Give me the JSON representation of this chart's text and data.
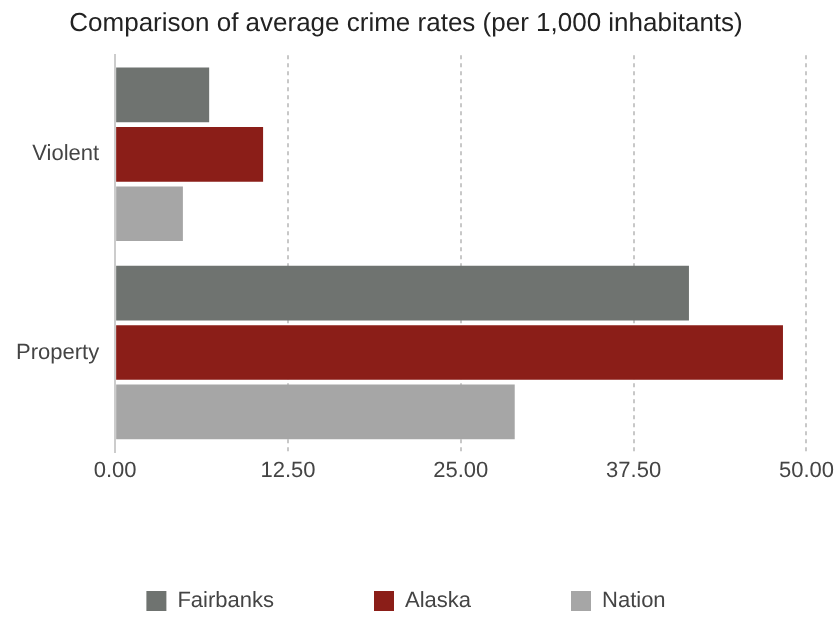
{
  "chart_data": {
    "type": "bar",
    "orientation": "horizontal",
    "title": "Comparison of average crime rates (per 1,000 inhabitants)",
    "categories": [
      "Violent",
      "Property"
    ],
    "series": [
      {
        "name": "Fairbanks",
        "color": "#6f7370",
        "values": [
          6.8,
          41.5
        ]
      },
      {
        "name": "Alaska",
        "color": "#8b1e18",
        "values": [
          10.7,
          48.3
        ]
      },
      {
        "name": "Nation",
        "color": "#a6a6a6",
        "values": [
          4.9,
          28.9
        ]
      }
    ],
    "xlim": [
      0,
      50
    ],
    "xticks": [
      {
        "value": 0,
        "label": "0.00"
      },
      {
        "value": 12.5,
        "label": "12.50"
      },
      {
        "value": 25,
        "label": "25.00"
      },
      {
        "value": 37.5,
        "label": "37.50"
      },
      {
        "value": 50,
        "label": "50.00"
      }
    ],
    "grid": "x",
    "line_style": "dotted",
    "legend": "bottom"
  }
}
